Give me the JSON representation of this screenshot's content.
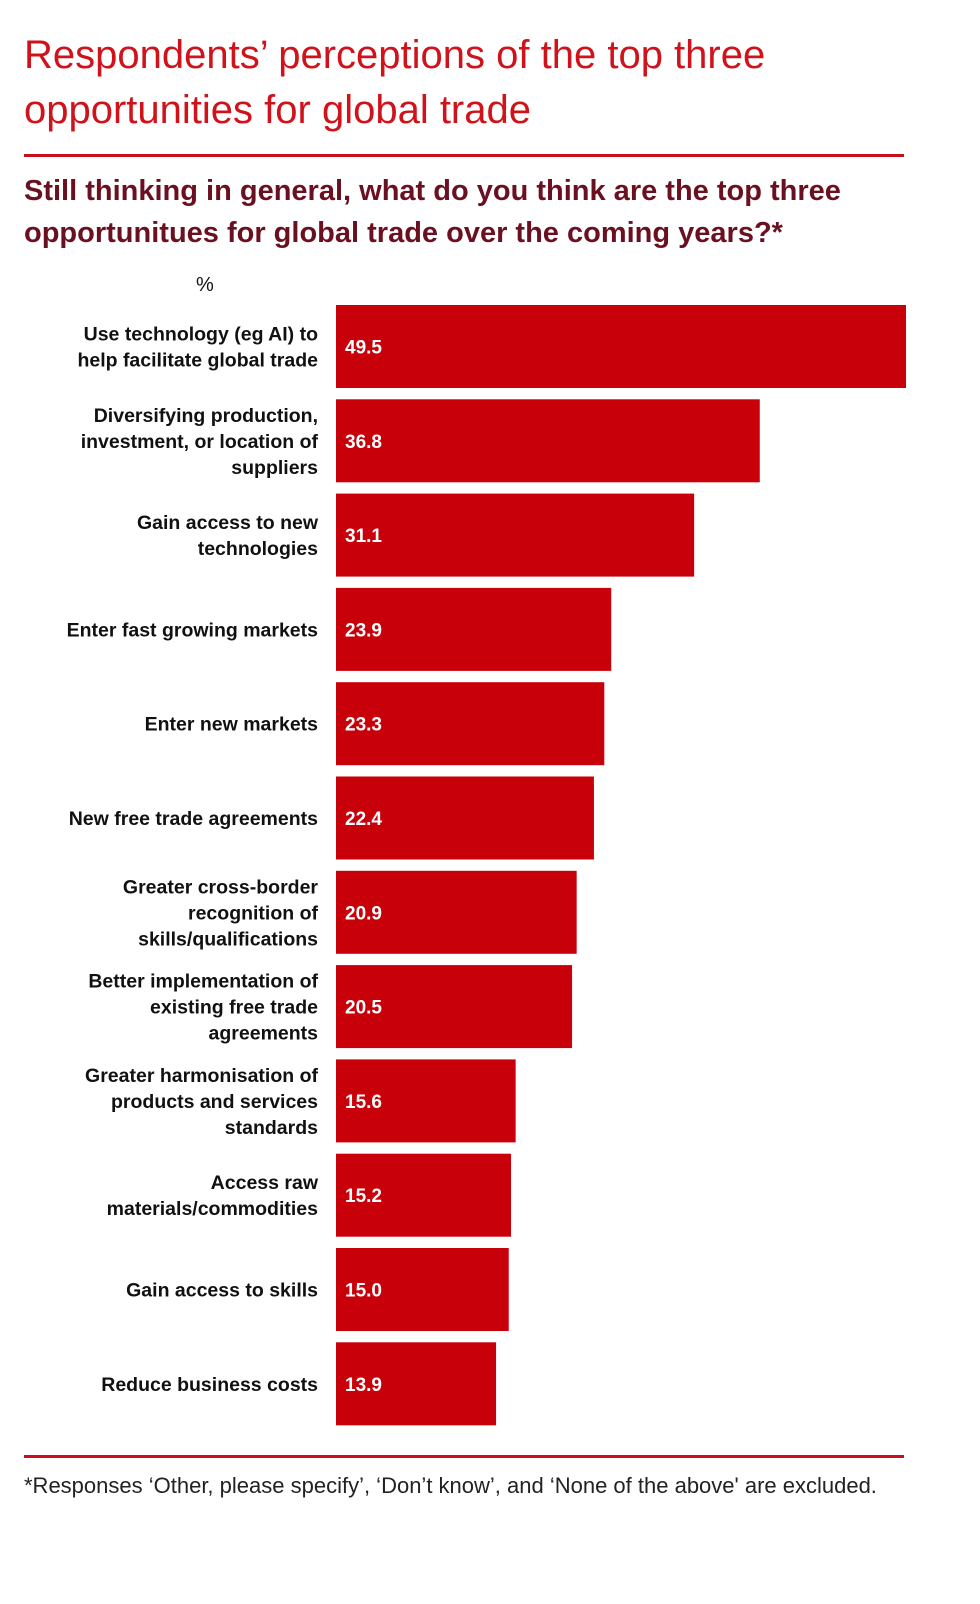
{
  "title": "Respondents’ perceptions of the top three opportunities for global trade",
  "question": "Still thinking in general, what do you think are the top three opportunitues for global trade over the coming years?*",
  "footnote": "*Responses ‘Other, please specify’, ‘Don’t know’, and ‘None of the above' are excluded.",
  "colors": {
    "bar": "#c8000a",
    "title": "#d0121b",
    "question": "#6b1020"
  },
  "chart_data": {
    "type": "bar",
    "orientation": "horizontal",
    "ylabel": "%",
    "xlim": [
      0,
      49.5
    ],
    "categories": [
      "Use technology (eg AI) to help facilitate global trade",
      "Diversifying production, investment, or location of suppliers",
      "Gain access to new technologies",
      "Enter fast growing markets",
      "Enter new markets",
      "New free trade agreements",
      "Greater cross-border recognition of skills/qualifications",
      "Better implementation of existing free trade agreements",
      "Greater harmonisation of products and services standards",
      "Access raw materials/commodities",
      "Gain access to skills",
      "Reduce business costs"
    ],
    "values": [
      49.5,
      36.8,
      31.1,
      23.9,
      23.3,
      22.4,
      20.9,
      20.5,
      15.6,
      15.2,
      15.0,
      13.9
    ],
    "value_labels": [
      "49.5",
      "36.8",
      "31.1",
      "23.9",
      "23.3",
      "22.4",
      "20.9",
      "20.5",
      "15.6",
      "15.2",
      "15.0",
      "13.9"
    ],
    "grid": false,
    "legend": "none"
  }
}
